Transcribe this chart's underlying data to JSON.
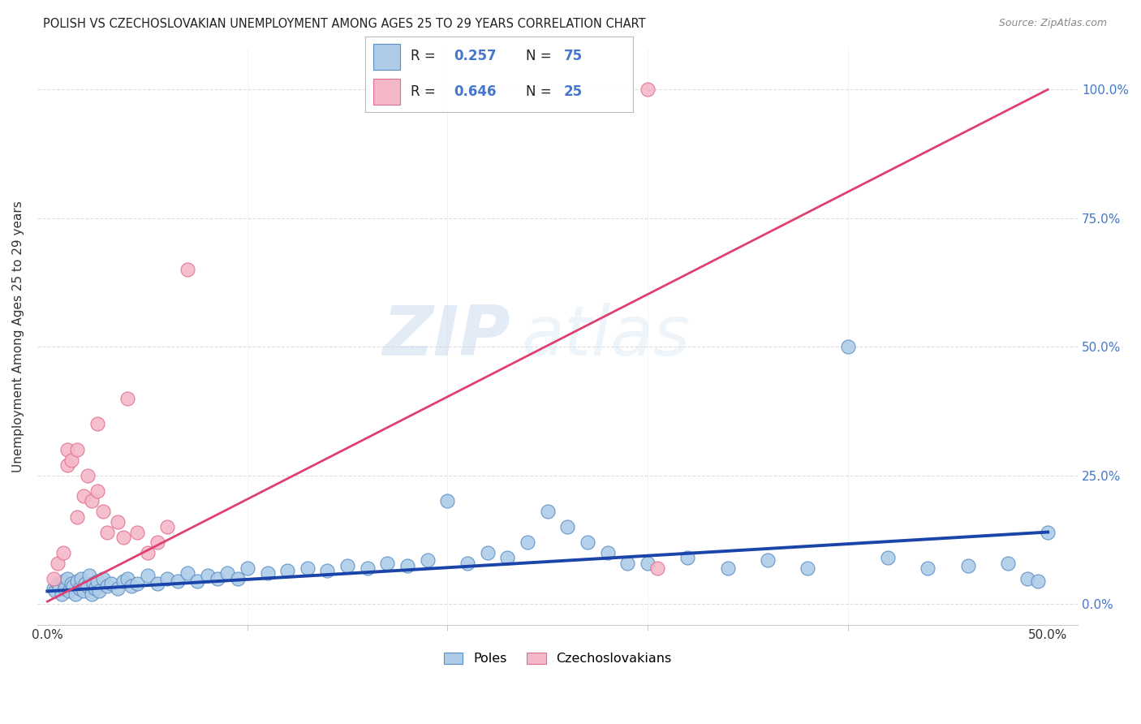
{
  "title": "POLISH VS CZECHOSLOVAKIAN UNEMPLOYMENT AMONG AGES 25 TO 29 YEARS CORRELATION CHART",
  "source": "Source: ZipAtlas.com",
  "ylabel_label": "Unemployment Among Ages 25 to 29 years",
  "poles_color": "#aecce8",
  "czechs_color": "#f5b8c8",
  "poles_edge_color": "#5b8ec4",
  "czechs_edge_color": "#e07090",
  "trend_poles_color": "#1a44aa",
  "trend_czechs_color": "#e04070",
  "poles_label": "Poles",
  "czechs_label": "Czechoslovakians",
  "watermark_zip": "ZIP",
  "watermark_atlas": "atlas",
  "r_poles": "0.257",
  "n_poles": "75",
  "r_czechs": "0.646",
  "n_czechs": "25",
  "label_color": "#4477cc",
  "title_color": "#222222",
  "source_color": "#888888",
  "grid_color": "#dddddd",
  "tick_color": "#333333",
  "xmin": 0.0,
  "xmax": 50.0,
  "ymin": 0.0,
  "ymax": 100.0,
  "yticks": [
    0.0,
    25.0,
    50.0,
    75.0,
    100.0
  ],
  "xtick_labels": [
    "0.0%",
    "50.0%"
  ],
  "xtick_positions": [
    0.0,
    50.0
  ],
  "poles_x": [
    0.3,
    0.4,
    0.5,
    0.6,
    0.7,
    0.8,
    0.9,
    1.0,
    1.1,
    1.2,
    1.3,
    1.4,
    1.5,
    1.6,
    1.7,
    1.8,
    1.9,
    2.0,
    2.1,
    2.2,
    2.3,
    2.4,
    2.5,
    2.6,
    2.8,
    3.0,
    3.2,
    3.5,
    3.8,
    4.0,
    4.2,
    4.5,
    5.0,
    5.5,
    6.0,
    6.5,
    7.0,
    7.5,
    8.0,
    8.5,
    9.0,
    9.5,
    10.0,
    11.0,
    12.0,
    13.0,
    14.0,
    15.0,
    16.0,
    17.0,
    18.0,
    19.0,
    20.0,
    21.0,
    22.0,
    23.0,
    24.0,
    25.0,
    26.0,
    27.0,
    28.0,
    29.0,
    30.0,
    32.0,
    34.0,
    36.0,
    38.0,
    40.0,
    42.0,
    44.0,
    46.0,
    48.0,
    49.0,
    49.5,
    50.0
  ],
  "poles_y": [
    3.0,
    2.5,
    4.0,
    3.5,
    2.0,
    4.5,
    3.0,
    5.0,
    2.5,
    4.0,
    3.5,
    2.0,
    4.5,
    3.0,
    5.0,
    2.5,
    4.0,
    3.5,
    5.5,
    2.0,
    4.0,
    3.0,
    4.5,
    2.5,
    5.0,
    3.5,
    4.0,
    3.0,
    4.5,
    5.0,
    3.5,
    4.0,
    5.5,
    4.0,
    5.0,
    4.5,
    6.0,
    4.5,
    5.5,
    5.0,
    6.0,
    5.0,
    7.0,
    6.0,
    6.5,
    7.0,
    6.5,
    7.5,
    7.0,
    8.0,
    7.5,
    8.5,
    20.0,
    8.0,
    10.0,
    9.0,
    12.0,
    18.0,
    15.0,
    12.0,
    10.0,
    8.0,
    8.0,
    9.0,
    7.0,
    8.5,
    7.0,
    50.0,
    9.0,
    7.0,
    7.5,
    8.0,
    5.0,
    4.5,
    14.0
  ],
  "czechs_x": [
    0.3,
    0.5,
    0.8,
    1.0,
    1.0,
    1.2,
    1.5,
    1.5,
    1.8,
    2.0,
    2.2,
    2.5,
    2.5,
    2.8,
    3.0,
    3.5,
    3.8,
    4.0,
    4.5,
    5.0,
    5.5,
    6.0,
    7.0,
    30.0,
    30.5
  ],
  "czechs_y": [
    5.0,
    8.0,
    10.0,
    27.0,
    30.0,
    28.0,
    30.0,
    17.0,
    21.0,
    25.0,
    20.0,
    35.0,
    22.0,
    18.0,
    14.0,
    16.0,
    13.0,
    40.0,
    14.0,
    10.0,
    12.0,
    15.0,
    65.0,
    100.0,
    7.0
  ],
  "poles_trend_x": [
    0.0,
    50.0
  ],
  "poles_trend_y": [
    2.5,
    14.0
  ],
  "czechs_trend_x": [
    0.0,
    50.0
  ],
  "czechs_trend_y": [
    0.5,
    100.0
  ]
}
